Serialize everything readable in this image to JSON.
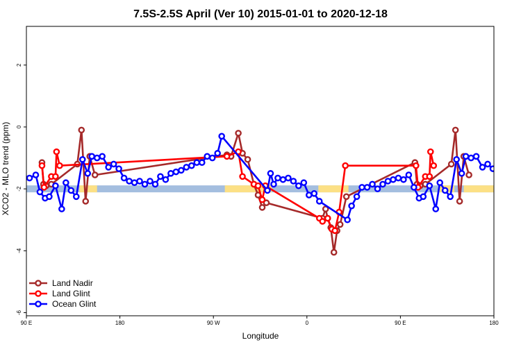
{
  "chart_data": {
    "type": "line",
    "title": "7.5S-2.5S April (Ver 10)   2015-01-01 to 2020-12-18",
    "xlabel": "Longitude",
    "ylabel": "XCO2 - MLO trend (ppm)",
    "xlim": [
      0,
      450
    ],
    "ylim": [
      -6.1,
      3.25
    ],
    "xticks": [
      {
        "value": 0,
        "label": "90 E"
      },
      {
        "value": 90,
        "label": "180"
      },
      {
        "value": 180,
        "label": "90 W"
      },
      {
        "value": 270,
        "label": "0"
      },
      {
        "value": 360,
        "label": "90 E"
      },
      {
        "value": 450,
        "label": "180"
      }
    ],
    "yticks": [
      {
        "value": 2,
        "label": "2"
      },
      {
        "value": 0,
        "label": "0"
      },
      {
        "value": -2,
        "label": "-2"
      },
      {
        "value": -4,
        "label": "-4"
      },
      {
        "value": -6,
        "label": "-6"
      }
    ],
    "legend_position": "bottom-left",
    "grid": false,
    "colors": {
      "land_nadir": "#a52a2a",
      "land_glint": "#ff0000",
      "ocean_glint": "#0000ff",
      "ocean_band": "#a4bedf",
      "land_band": "#fce085"
    },
    "surface_band": {
      "y": -2.0,
      "ocean_color": "#a4bedf",
      "land_color": "#fce085",
      "land_segments": [
        [
          51,
          68
        ],
        [
          191,
          236
        ],
        [
          281,
          310
        ],
        [
          397,
          412
        ],
        [
          421,
          450
        ]
      ]
    },
    "series": [
      {
        "name": "Land Nadir",
        "color": "#a52a2a",
        "points": [
          [
            15,
            -1.15
          ],
          [
            16.5,
            -1.85
          ],
          [
            19,
            -1.9
          ],
          [
            24,
            -1.85
          ],
          [
            49,
            -1.2
          ],
          [
            53,
            -0.1
          ],
          [
            57,
            -2.4
          ],
          [
            61,
            -0.95
          ],
          [
            66,
            -1.55
          ],
          [
            193,
            -0.9
          ],
          [
            197,
            -0.95
          ],
          [
            204,
            -0.2
          ],
          [
            208,
            -0.85
          ],
          [
            213,
            -1.05
          ],
          [
            219,
            -1.85
          ],
          [
            223,
            -2.2
          ],
          [
            227,
            -2.6
          ],
          [
            231,
            -2.45
          ],
          [
            285,
            -2.95
          ],
          [
            288,
            -2.65
          ],
          [
            290,
            -2.95
          ],
          [
            293,
            -3.25
          ],
          [
            296,
            -4.05
          ],
          [
            299,
            -3.35
          ],
          [
            302,
            -3.15
          ],
          [
            308,
            -2.25
          ],
          [
            374,
            -1.15
          ],
          [
            376,
            -1.85
          ],
          [
            379,
            -1.9
          ],
          [
            384,
            -1.85
          ],
          [
            409,
            -1.2
          ],
          [
            413,
            -0.1
          ],
          [
            417,
            -2.4
          ],
          [
            421,
            -0.95
          ],
          [
            426,
            -1.55
          ]
        ]
      },
      {
        "name": "Land Glint",
        "color": "#ff0000",
        "points": [
          [
            15,
            -1.25
          ],
          [
            17,
            -1.95
          ],
          [
            24,
            -1.6
          ],
          [
            28,
            -1.6
          ],
          [
            29,
            -0.8
          ],
          [
            32,
            -1.25
          ],
          [
            193,
            -0.95
          ],
          [
            204,
            -0.8
          ],
          [
            208,
            -1.6
          ],
          [
            219,
            -1.85
          ],
          [
            223,
            -1.9
          ],
          [
            227,
            -2.35
          ],
          [
            230,
            -1.9
          ],
          [
            282,
            -2.95
          ],
          [
            285,
            -3.05
          ],
          [
            290,
            -2.95
          ],
          [
            294,
            -3.3
          ],
          [
            297,
            -3.35
          ],
          [
            301,
            -2.75
          ],
          [
            307,
            -1.25
          ],
          [
            375,
            -1.25
          ],
          [
            377,
            -1.95
          ],
          [
            384,
            -1.6
          ],
          [
            388,
            -1.6
          ],
          [
            389,
            -0.8
          ],
          [
            392,
            -1.25
          ]
        ]
      },
      {
        "name": "Ocean Glint",
        "color": "#0000ff",
        "points": [
          [
            3,
            -1.65
          ],
          [
            9,
            -1.55
          ],
          [
            13,
            -2.1
          ],
          [
            18,
            -2.3
          ],
          [
            22,
            -2.25
          ],
          [
            28,
            -1.9
          ],
          [
            34,
            -2.65
          ],
          [
            38,
            -1.8
          ],
          [
            43,
            -2.05
          ],
          [
            48,
            -2.25
          ],
          [
            54,
            -1.05
          ],
          [
            59,
            -1.5
          ],
          [
            63,
            -0.95
          ],
          [
            68,
            -1.0
          ],
          [
            73,
            -0.95
          ],
          [
            79,
            -1.3
          ],
          [
            84,
            -1.2
          ],
          [
            89,
            -1.35
          ],
          [
            94,
            -1.65
          ],
          [
            99,
            -1.75
          ],
          [
            104,
            -1.8
          ],
          [
            109,
            -1.75
          ],
          [
            114,
            -1.85
          ],
          [
            119,
            -1.75
          ],
          [
            124,
            -1.85
          ],
          [
            129,
            -1.6
          ],
          [
            134,
            -1.7
          ],
          [
            139,
            -1.5
          ],
          [
            144,
            -1.45
          ],
          [
            149,
            -1.4
          ],
          [
            154,
            -1.3
          ],
          [
            159,
            -1.25
          ],
          [
            164,
            -1.15
          ],
          [
            169,
            -1.15
          ],
          [
            174,
            -0.95
          ],
          [
            179,
            -1.0
          ],
          [
            184,
            -0.85
          ],
          [
            188,
            -0.3
          ],
          [
            232,
            -2.05
          ],
          [
            235,
            -1.5
          ],
          [
            238,
            -1.85
          ],
          [
            242,
            -1.65
          ],
          [
            247,
            -1.7
          ],
          [
            252,
            -1.65
          ],
          [
            257,
            -1.75
          ],
          [
            262,
            -1.9
          ],
          [
            267,
            -1.8
          ],
          [
            272,
            -2.2
          ],
          [
            277,
            -2.15
          ],
          [
            282,
            -2.4
          ],
          [
            309,
            -3.0
          ],
          [
            313,
            -2.55
          ],
          [
            318,
            -2.25
          ],
          [
            323,
            -1.95
          ],
          [
            328,
            -1.95
          ],
          [
            333,
            -1.85
          ],
          [
            338,
            -2.0
          ],
          [
            343,
            -1.85
          ],
          [
            348,
            -1.75
          ],
          [
            353,
            -1.7
          ],
          [
            358,
            -1.65
          ],
          [
            363,
            -1.7
          ],
          [
            368,
            -1.55
          ],
          [
            373,
            -1.95
          ],
          [
            378,
            -2.3
          ],
          [
            382,
            -2.25
          ],
          [
            388,
            -1.9
          ],
          [
            394,
            -2.65
          ],
          [
            398,
            -1.8
          ],
          [
            403,
            -2.05
          ],
          [
            408,
            -2.25
          ],
          [
            414,
            -1.05
          ],
          [
            419,
            -1.5
          ],
          [
            423,
            -0.95
          ],
          [
            428,
            -1.0
          ],
          [
            433,
            -0.95
          ],
          [
            439,
            -1.3
          ],
          [
            444,
            -1.2
          ],
          [
            449,
            -1.35
          ]
        ]
      }
    ]
  }
}
